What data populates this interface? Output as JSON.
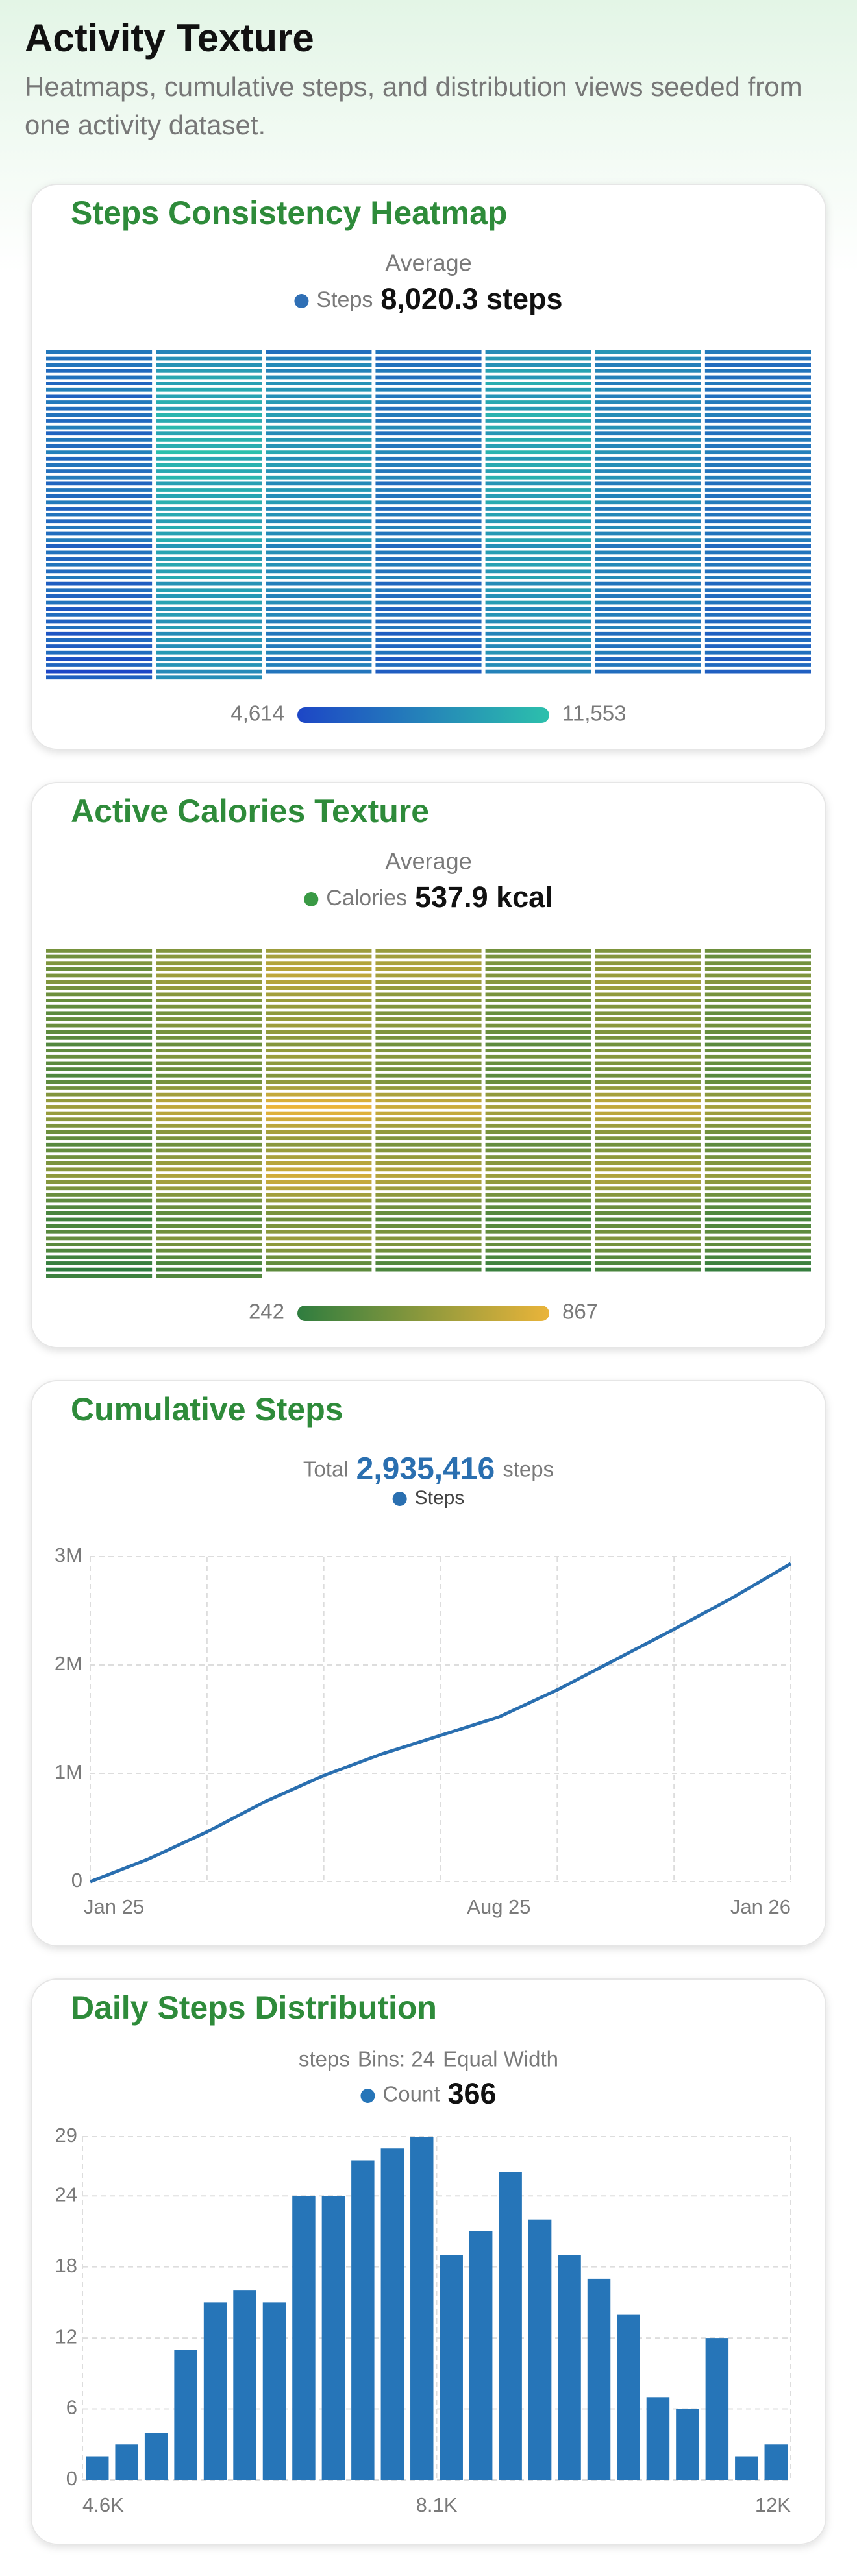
{
  "header": {
    "title": "Activity Texture",
    "subtitle": "Heatmaps, cumulative steps, and distribution views seeded from one activity dataset."
  },
  "chart_data": [
    {
      "type": "heatmap",
      "title": "Steps Consistency Heatmap",
      "stat_label": "Average",
      "series_name": "Steps",
      "series_color": "#2f6fb5",
      "stat_value": "8,020.3 steps",
      "scale": [
        {
          "value": 4614,
          "label": "4,614"
        },
        {
          "value": 11553,
          "label": "11,553"
        }
      ],
      "colors": [
        "#1d46c6",
        "#2cc0ac"
      ],
      "values": [
        7420,
        8130,
        6890,
        7210,
        8560,
        9120,
        7640,
        6980,
        8750,
        7930,
        6540,
        9340,
        8210,
        7050,
        7310,
        9020,
        8460,
        7120,
        8870,
        7780,
        6720,
        6650,
        9480,
        8090,
        7560,
        9930,
        8340,
        7280,
        7050,
        10120,
        8610,
        6930,
        9210,
        8050,
        6890,
        6420,
        9760,
        8920,
        7410,
        10480,
        7690,
        7430,
        7880,
        10340,
        9150,
        8020,
        9640,
        8520,
        7160,
        6210,
        9870,
        8760,
        7340,
        8990,
        7860,
        6970,
        7540,
        10610,
        9380,
        7880,
        10210,
        8430,
        7590,
        6830,
        9540,
        8280,
        6990,
        9450,
        7920,
        7240,
        7160,
        10950,
        9630,
        7650,
        10730,
        8680,
        7830,
        6590,
        10280,
        8840,
        7270,
        9820,
        8140,
        6860,
        7720,
        11120,
        9910,
        8230,
        10390,
        8870,
        7510,
        6340,
        9960,
        8560,
        7060,
        9170,
        7730,
        7020,
        7470,
        10820,
        9470,
        7960,
        10560,
        8590,
        7690,
        6760,
        10410,
        9020,
        7380,
        9690,
        8260,
        7310,
        7890,
        11553,
        10140,
        8410,
        10870,
        9060,
        7940,
        6510,
        10050,
        8690,
        7150,
        9380,
        7980,
        7110,
        7280,
        10730,
        9560,
        7790,
        10240,
        8720,
        7460,
        6920,
        10190,
        8930,
        7460,
        9760,
        8310,
        7230,
        7640,
        10980,
        9720,
        8120,
        10650,
        8940,
        7780,
        6370,
        9690,
        8410,
        6880,
        9030,
        7650,
        6940,
        7350,
        10460,
        9290,
        7720,
        10090,
        8480,
        7390,
        6690,
        9920,
        8640,
        7230,
        9510,
        8050,
        7080,
        7560,
        10650,
        9430,
        7940,
        10380,
        8760,
        7620,
        6280,
        9430,
        8150,
        6770,
        8920,
        7540,
        6810,
        7190,
        10240,
        8980,
        7570,
        9870,
        8290,
        7270,
        6540,
        9580,
        8370,
        7010,
        9260,
        7870,
        6990,
        7410,
        10390,
        9160,
        7830,
        10020,
        8560,
        7480,
        6810,
        9810,
        8520,
        7290,
        9340,
        8130,
        7150,
        7630,
        10510,
        9340,
        8050,
        10170,
        8810,
        7720,
        6150,
        9240,
        7980,
        6620,
        8760,
        7410,
        6690,
        7090,
        9970,
        8790,
        7480,
        9610,
        8160,
        7210,
        6460,
        9390,
        8230,
        6910,
        9080,
        7720,
        6870,
        7310,
        10120,
        8940,
        7690,
        9790,
        8420,
        7380,
        6720,
        9660,
        8460,
        7180,
        9240,
        7990,
        7060,
        7530,
        10280,
        9080,
        7920,
        9950,
        8650,
        7560,
        5980,
        9010,
        7860,
        6480,
        8610,
        7290,
        6540,
        6940,
        9730,
        8610,
        7340,
        9420,
        7940,
        7090,
        6310,
        9160,
        8050,
        6790,
        8840,
        7530,
        6710,
        7160,
        9890,
        8730,
        7560,
        9560,
        8210,
        7250,
        5720,
        8820,
        7640,
        6230,
        8390,
        7080,
        6310,
        6830,
        9510,
        8380,
        7170,
        9130,
        7760,
        6920,
        6190,
        8940,
        7810,
        6640,
        8570,
        7320,
        6560,
        7020,
        9620,
        8490,
        7410,
        9280,
        8020,
        7130,
        5460,
        8570,
        7390,
        5980,
        8140,
        6830,
        6070,
        6580,
        9240,
        8120,
        6960,
        8890,
        7570,
        6740,
        5930,
        8690,
        7560,
        6370,
        8320,
        7060,
        6290,
        6770,
        9380,
        8270,
        7190,
        9050,
        7810,
        6960,
        5210,
        8240,
        7130,
        5760,
        7890,
        6590,
        5840,
        6390,
        9010,
        7940,
        6810,
        8640,
        7390,
        6580,
        4614,
        8460,
        7280,
        5930,
        8010,
        6840,
        6020,
        6120,
        8730
      ]
    },
    {
      "type": "heatmap",
      "title": "Active Calories Texture",
      "stat_label": "Average",
      "series_name": "Calories",
      "series_color": "#3a9a45",
      "stat_value": "537.9 kcal",
      "scale": [
        {
          "value": 242,
          "label": "242"
        },
        {
          "value": 867,
          "label": "867"
        }
      ],
      "colors": [
        "#2f7d3f",
        "#eab43a"
      ],
      "values": [
        480,
        520,
        610,
        590,
        470,
        510,
        450,
        460,
        540,
        640,
        620,
        490,
        530,
        430,
        510,
        560,
        680,
        650,
        500,
        550,
        470,
        440,
        580,
        700,
        670,
        480,
        570,
        490,
        490,
        610,
        720,
        640,
        520,
        590,
        510,
        520,
        590,
        690,
        610,
        540,
        620,
        530,
        470,
        570,
        660,
        580,
        510,
        600,
        500,
        450,
        540,
        630,
        560,
        490,
        570,
        480,
        430,
        510,
        600,
        540,
        470,
        540,
        460,
        410,
        490,
        580,
        520,
        450,
        520,
        440,
        390,
        470,
        560,
        500,
        430,
        500,
        420,
        420,
        500,
        590,
        530,
        460,
        530,
        450,
        440,
        520,
        610,
        550,
        480,
        550,
        470,
        400,
        480,
        570,
        510,
        440,
        510,
        430,
        380,
        460,
        550,
        490,
        420,
        490,
        410,
        360,
        440,
        530,
        470,
        400,
        470,
        390,
        410,
        490,
        580,
        520,
        450,
        520,
        440,
        430,
        510,
        600,
        540,
        470,
        540,
        460,
        390,
        470,
        560,
        500,
        430,
        500,
        420,
        370,
        450,
        540,
        480,
        410,
        480,
        400,
        350,
        430,
        520,
        460,
        390,
        460,
        380,
        400,
        480,
        570,
        510,
        440,
        510,
        430,
        460,
        560,
        650,
        580,
        510,
        580,
        490,
        520,
        630,
        740,
        660,
        570,
        640,
        550,
        580,
        690,
        810,
        720,
        610,
        700,
        600,
        610,
        720,
        867,
        760,
        640,
        730,
        630,
        590,
        700,
        830,
        740,
        620,
        710,
        610,
        550,
        660,
        780,
        690,
        590,
        670,
        570,
        500,
        600,
        710,
        630,
        540,
        610,
        520,
        450,
        540,
        640,
        570,
        490,
        550,
        470,
        410,
        490,
        590,
        520,
        450,
        500,
        430,
        380,
        460,
        550,
        490,
        420,
        470,
        400,
        420,
        500,
        600,
        530,
        460,
        510,
        440,
        460,
        550,
        650,
        580,
        500,
        560,
        480,
        500,
        590,
        700,
        620,
        540,
        600,
        520,
        540,
        640,
        750,
        670,
        580,
        650,
        560,
        560,
        660,
        780,
        690,
        600,
        670,
        580,
        530,
        630,
        740,
        660,
        570,
        640,
        550,
        490,
        580,
        690,
        610,
        530,
        590,
        510,
        440,
        530,
        630,
        560,
        480,
        540,
        460,
        400,
        480,
        580,
        510,
        440,
        490,
        420,
        360,
        440,
        530,
        470,
        400,
        450,
        380,
        330,
        410,
        490,
        430,
        370,
        420,
        350,
        310,
        380,
        460,
        400,
        340,
        390,
        330,
        340,
        420,
        500,
        440,
        380,
        430,
        360,
        380,
        460,
        550,
        490,
        420,
        470,
        400,
        420,
        510,
        600,
        530,
        460,
        520,
        440,
        390,
        470,
        560,
        500,
        430,
        480,
        410,
        350,
        430,
        520,
        460,
        390,
        440,
        370,
        300,
        370,
        450,
        390,
        330,
        380,
        320,
        270,
        340,
        420,
        360,
        300,
        350,
        290,
        242,
        320,
        400,
        340,
        280,
        330,
        270,
        290,
        360
      ]
    },
    {
      "type": "line",
      "title": "Cumulative Steps",
      "total_label": "Total",
      "total": {
        "value": 2935416,
        "label": "2,935,416"
      },
      "unit": "steps",
      "categories": [
        "Jan 25",
        null,
        null,
        null,
        null,
        null,
        null,
        "Aug 25",
        null,
        null,
        null,
        null,
        "Jan 26"
      ],
      "series": [
        {
          "name": "Steps",
          "color": "#2a6fb0",
          "values": [
            0,
            210000,
            460000,
            740000,
            980000,
            1180000,
            1350000,
            1520000,
            1770000,
            2050000,
            2330000,
            2620000,
            2935416
          ]
        }
      ],
      "ylim": [
        0,
        3000000
      ],
      "yticks": [
        0,
        {
          "value": 1000000,
          "label": "1M"
        },
        {
          "value": 2000000,
          "label": "2M"
        },
        {
          "value": 3000000,
          "label": "3M"
        }
      ],
      "grid": true
    },
    {
      "type": "histogram",
      "title": "Daily Steps Distribution",
      "subtitle_parts": [
        "steps",
        "Bins: 24",
        "Equal Width"
      ],
      "total": 366,
      "series": [
        {
          "name": "Count",
          "color": "#2675b8",
          "values": [
            2,
            3,
            4,
            11,
            15,
            16,
            15,
            24,
            24,
            27,
            28,
            29,
            19,
            21,
            26,
            22,
            19,
            17,
            14,
            7,
            6,
            12,
            2,
            3
          ]
        }
      ],
      "bins": [
        4614,
        4903.125,
        5192.25,
        5481.375,
        5770.5,
        6059.625,
        6348.75,
        6637.875,
        6927,
        7216.125,
        7505.25,
        7794.375,
        8083.5,
        8372.625,
        8661.75,
        8950.875,
        9240,
        9529.125,
        9818.25,
        10107.375,
        10396.5,
        10685.625,
        10974.75,
        11263.875,
        11553
      ],
      "xlim": [
        4614,
        11553
      ],
      "xticks": [
        {
          "value": 4614,
          "label": "4.6K"
        },
        {
          "value": 8083.5,
          "label": "8.1K"
        },
        {
          "value": 11553,
          "label": "12K"
        }
      ],
      "ylim": [
        0,
        29
      ],
      "yticks": [
        0,
        6,
        12,
        18,
        24,
        29
      ],
      "grid": true
    }
  ]
}
